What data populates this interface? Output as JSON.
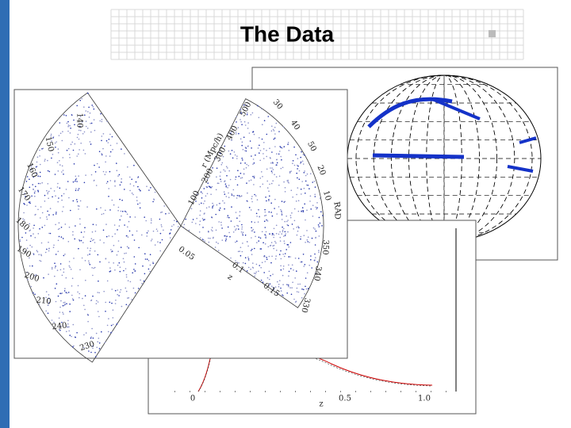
{
  "title": "The Data",
  "wedge_plot": {
    "axis_label": "r (Mpc/h)",
    "left_labels": [
      "140",
      "150",
      "160",
      "170",
      "180",
      "190",
      "200",
      "210",
      "240",
      "230"
    ],
    "right_labels": [
      "30",
      "40",
      "50",
      "20",
      "10",
      "RA",
      "D",
      "350",
      "340",
      "330"
    ],
    "r_labels": [
      "500",
      "400",
      "300",
      "200",
      "100"
    ],
    "z_labels": [
      "0.05",
      "0.1",
      "0.15"
    ],
    "z_label": "z"
  },
  "redshift_plot": {
    "x_labels": [
      "0",
      "0.5",
      "1.0"
    ],
    "x_label": "z"
  }
}
